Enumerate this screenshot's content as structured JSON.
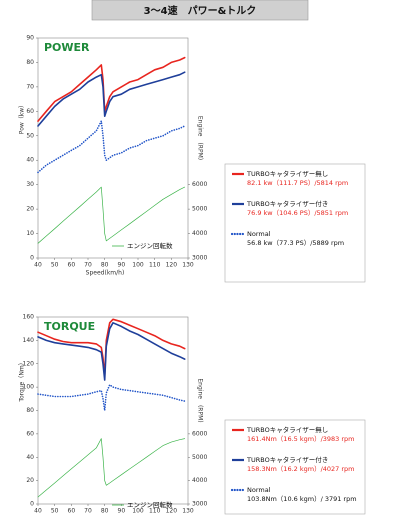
{
  "header": {
    "title": "3〜4速　パワー&トルク"
  },
  "chart_data": [
    {
      "type": "line",
      "title": "POWER",
      "y_label": "Pow（kw）",
      "y2_label": "Engine　(RPM)",
      "x_label": "Speed(km/h)",
      "x": [
        40,
        45,
        50,
        55,
        60,
        65,
        70,
        75,
        78,
        79,
        80,
        81,
        83,
        85,
        90,
        95,
        100,
        105,
        110,
        115,
        120,
        125,
        128
      ],
      "xlim": [
        40,
        130
      ],
      "xticks": [
        40,
        50,
        60,
        70,
        80,
        90,
        100,
        110,
        120,
        130
      ],
      "ylim": [
        0,
        90
      ],
      "yticks": [
        0,
        10,
        20,
        30,
        40,
        50,
        60,
        70,
        80,
        90
      ],
      "y2lim": [
        3000,
        12000
      ],
      "y2ticks": [
        3000,
        4000,
        5000,
        6000
      ],
      "grid": false,
      "series": [
        {
          "name": "TURBOキャタライザー無し",
          "note": "82.1 kw（111.7 PS）/5814 rpm",
          "color": "#e8251f",
          "style": "solid",
          "values": [
            56,
            60,
            64,
            66,
            68,
            71,
            74,
            77,
            79,
            73,
            60,
            62,
            66,
            68,
            70,
            72,
            73,
            75,
            77,
            78,
            80,
            81,
            82
          ]
        },
        {
          "name": "TURBOキャタライザー付き",
          "note": "76.9 kw（104.6 PS）/5851 rpm",
          "color": "#1f3f9a",
          "style": "solid",
          "values": [
            54,
            58,
            62,
            65,
            67,
            69,
            72,
            74,
            75,
            70,
            58,
            60,
            64,
            66,
            67,
            69,
            70,
            71,
            72,
            73,
            74,
            75,
            76
          ]
        },
        {
          "name": "Normal",
          "note": "56.8 kw（77.3 PS）/5889 rpm",
          "color": "#2255c8",
          "style": "dotted",
          "values": [
            35,
            38,
            40,
            42,
            44,
            46,
            49,
            52,
            56,
            50,
            42,
            40,
            41,
            42,
            43,
            45,
            46,
            48,
            49,
            50,
            52,
            53,
            54
          ]
        },
        {
          "name": "エンジン回転数",
          "color": "#3cb44a",
          "style": "solid",
          "axis": "y2",
          "values": [
            3600,
            3900,
            4200,
            4500,
            4800,
            5100,
            5400,
            5700,
            5900,
            5000,
            4000,
            3700,
            3800,
            3900,
            4150,
            4400,
            4650,
            4900,
            5150,
            5400,
            5600,
            5800,
            5900
          ]
        }
      ]
    },
    {
      "type": "line",
      "title": "TORQUE",
      "y_label": "Torque（Nm）",
      "y2_label": "Engine　(RPM)",
      "x": [
        40,
        45,
        50,
        55,
        60,
        65,
        70,
        75,
        78,
        79,
        80,
        81,
        83,
        85,
        90,
        95,
        100,
        105,
        110,
        115,
        120,
        125,
        128
      ],
      "xlim": [
        40,
        130
      ],
      "xticks": [
        40,
        50,
        60,
        70,
        80,
        90,
        100,
        110,
        120,
        130
      ],
      "ylim": [
        0,
        160
      ],
      "yticks": [
        0,
        20,
        40,
        60,
        80,
        100,
        120,
        140,
        160
      ],
      "y2lim": [
        3000,
        11000
      ],
      "y2ticks": [
        3000,
        4000,
        5000,
        6000
      ],
      "grid": false,
      "series": [
        {
          "name": "TURBOキャタライザー無し",
          "note": "161.4Nm（16.5 kgm）/3983 rpm",
          "color": "#e8251f",
          "style": "solid",
          "values": [
            147,
            144,
            141,
            139,
            138,
            138,
            138,
            137,
            134,
            125,
            110,
            140,
            155,
            158,
            156,
            153,
            150,
            147,
            144,
            140,
            137,
            135,
            133
          ]
        },
        {
          "name": "TURBOキャタライザー付き",
          "note": "158.3Nm（16.2 kgm）/4027 rpm",
          "color": "#1f3f9a",
          "style": "solid",
          "values": [
            143,
            140,
            138,
            137,
            136,
            135,
            134,
            132,
            130,
            120,
            106,
            135,
            150,
            155,
            152,
            148,
            145,
            141,
            137,
            133,
            129,
            126,
            124
          ]
        },
        {
          "name": "Normal",
          "note": "103.8Nm（10.6 kgm）/ 3791 rpm",
          "color": "#2255c8",
          "style": "dotted",
          "values": [
            94,
            93,
            92,
            92,
            92,
            93,
            94,
            96,
            97,
            90,
            80,
            95,
            102,
            100,
            98,
            97,
            96,
            95,
            94,
            93,
            91,
            89,
            88
          ]
        },
        {
          "name": "エンジン回転数",
          "color": "#3cb44a",
          "style": "solid",
          "axis": "y2",
          "values": [
            3300,
            3600,
            3900,
            4200,
            4500,
            4800,
            5100,
            5400,
            5800,
            5000,
            4000,
            3800,
            3900,
            4000,
            4250,
            4500,
            4750,
            5000,
            5250,
            5500,
            5650,
            5750,
            5800
          ]
        }
      ]
    }
  ]
}
